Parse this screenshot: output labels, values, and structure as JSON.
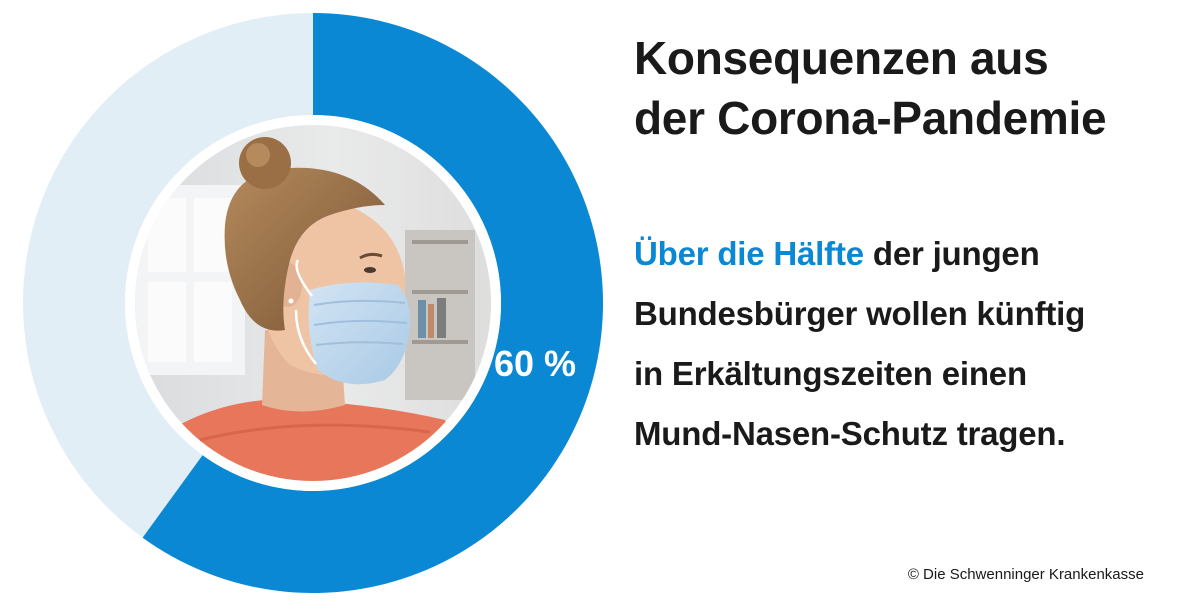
{
  "title": {
    "line1": "Konsequenzen aus",
    "line2": "der Corona-Pandemie"
  },
  "statement": {
    "line1_highlight": "Über die Hälfte",
    "line1_rest": " der jungen",
    "line2": "Bundesbürger wollen künftig",
    "line3": "in Erkältungszeiten einen",
    "line4": "Mund-Nasen-Schutz tragen."
  },
  "copyright": "© Die Schwenninger Krankenkasse",
  "colors": {
    "accent": "#0a88d4",
    "track": "#e2eef6",
    "text": "#1a1a1a"
  },
  "chart_data": {
    "type": "pie",
    "variant": "donut",
    "values": [
      60,
      40
    ],
    "labels": [
      "60 %",
      ""
    ],
    "center_image": "woman-with-face-mask-photo"
  }
}
